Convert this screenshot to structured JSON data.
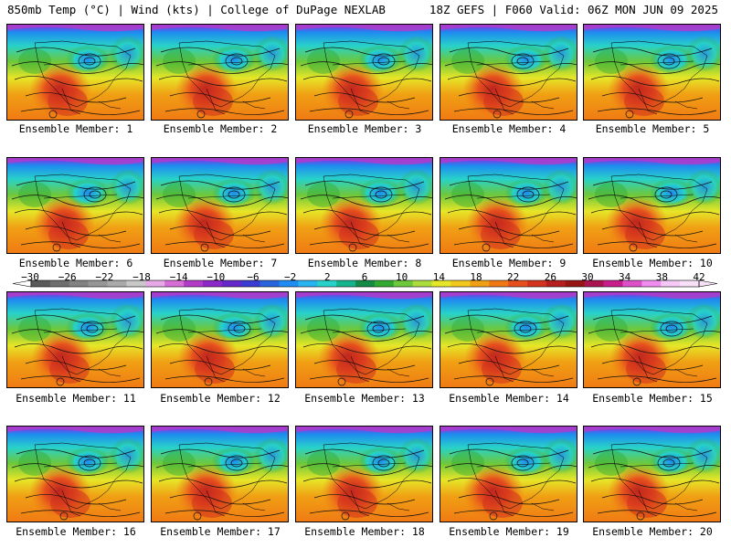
{
  "header": {
    "left": "850mb Temp (°C) | Wind (kts) | College of DuPage NEXLAB",
    "right": "18Z GEFS | F060 Valid: 06Z MON JUN 09 2025"
  },
  "members": [
    {
      "label": "Ensemble Member: 1"
    },
    {
      "label": "Ensemble Member: 2"
    },
    {
      "label": "Ensemble Member: 3"
    },
    {
      "label": "Ensemble Member: 4"
    },
    {
      "label": "Ensemble Member: 5"
    },
    {
      "label": "Ensemble Member: 6"
    },
    {
      "label": "Ensemble Member: 7"
    },
    {
      "label": "Ensemble Member: 8"
    },
    {
      "label": "Ensemble Member: 9"
    },
    {
      "label": "Ensemble Member: 10"
    },
    {
      "label": "Ensemble Member: 11"
    },
    {
      "label": "Ensemble Member: 12"
    },
    {
      "label": "Ensemble Member: 13"
    },
    {
      "label": "Ensemble Member: 14"
    },
    {
      "label": "Ensemble Member: 15"
    },
    {
      "label": "Ensemble Member: 16"
    },
    {
      "label": "Ensemble Member: 17"
    },
    {
      "label": "Ensemble Member: 18"
    },
    {
      "label": "Ensemble Member: 19"
    },
    {
      "label": "Ensemble Member: 20"
    }
  ],
  "colorbar": {
    "labels": [
      "−30",
      "−26",
      "−22",
      "−18",
      "−14",
      "−10",
      "−6",
      "−2",
      "2",
      "6",
      "10",
      "14",
      "18",
      "22",
      "26",
      "30",
      "34",
      "38",
      "42"
    ],
    "colors": [
      "#5a5a5a",
      "#6e6e6e",
      "#828282",
      "#969696",
      "#aaaaaa",
      "#c8c8c8",
      "#e6a8e6",
      "#d66ed6",
      "#b23cc8",
      "#8c28c8",
      "#6428c8",
      "#3c3cd2",
      "#2864dc",
      "#1e8cf0",
      "#28b4f0",
      "#28d2c8",
      "#14b48c",
      "#148c46",
      "#32aa32",
      "#6ec83c",
      "#aadc3c",
      "#e6e628",
      "#f0c81e",
      "#f0a014",
      "#f07814",
      "#e6501e",
      "#d2321e",
      "#b41e1e",
      "#961414",
      "#aa1450",
      "#c81e8c",
      "#dc50c8",
      "#f08cf0",
      "#f5c8f5",
      "#f8e0f8"
    ]
  }
}
